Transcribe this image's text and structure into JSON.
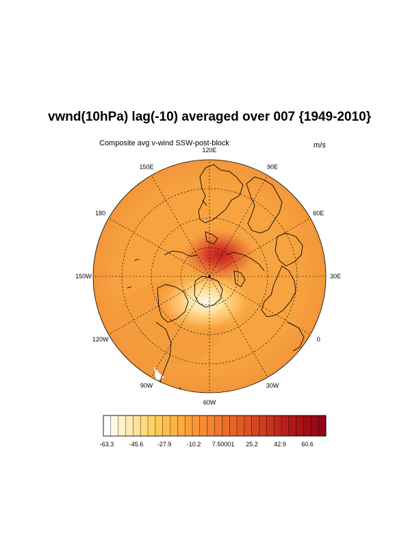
{
  "title": "vwnd(10hPa) lag(-10) averaged over 007 {1949-2010}",
  "subtitle_left": "Composite avg v-wind SSW-post-block",
  "units": "m/s",
  "longitude_labels": [
    {
      "text": "120E",
      "deg": 120
    },
    {
      "text": "90E",
      "deg": 90
    },
    {
      "text": "60E",
      "deg": 60
    },
    {
      "text": "30E",
      "deg": 30
    },
    {
      "text": "0",
      "deg": 0
    },
    {
      "text": "30W",
      "deg": -30
    },
    {
      "text": "60W",
      "deg": -60
    },
    {
      "text": "90W",
      "deg": -90
    },
    {
      "text": "120W",
      "deg": -120
    },
    {
      "text": "150W",
      "deg": -150
    },
    {
      "text": "180",
      "deg": 180
    },
    {
      "text": "150E",
      "deg": 150
    }
  ],
  "colorbar": {
    "labels": [
      "-63.3",
      "-45.6",
      "-27.9",
      "-10.2",
      "7.50001",
      "25.2",
      "42.9",
      "60.6"
    ],
    "min": -63.3,
    "max": 69.5,
    "colors": [
      "#ffffff",
      "#fff8e6",
      "#fff1cc",
      "#ffe9b3",
      "#ffe299",
      "#ffdb80",
      "#ffd266",
      "#ffc857",
      "#ffbd4d",
      "#ffb347",
      "#ffa940",
      "#fc9f3a",
      "#fa9536",
      "#f78b33",
      "#f48230",
      "#f0782d",
      "#ec6e2b",
      "#e76428",
      "#e25a26",
      "#dc5024",
      "#d54622",
      "#ce3c20",
      "#c7321e",
      "#c0281c",
      "#b81f1b",
      "#b01719",
      "#a81218",
      "#a00d17",
      "#980a16",
      "#900815"
    ]
  },
  "map": {
    "projection": "polar stereographic (north pole)",
    "base_color": "#f7a440",
    "max_region_color": "#c9281c",
    "min_region_color": "#fff2d0"
  }
}
